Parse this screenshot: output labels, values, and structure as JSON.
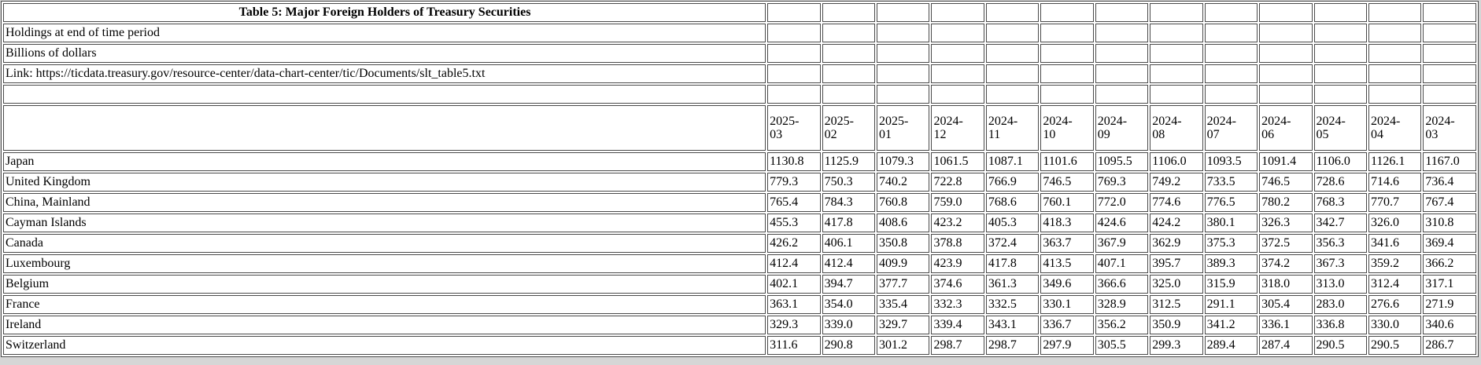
{
  "page": {
    "background_color": "#d6d6d6",
    "table_background_color": "#ffffff",
    "border_color": "#4a4a4a",
    "text_color": "#000000"
  },
  "table": {
    "title": "Table 5: Major Foreign Holders of Treasury Securities",
    "holdings_note": "Holdings at end of time period",
    "units_note": "Billions of dollars",
    "link_line": "Link: https://ticdata.treasury.gov/resource-center/data-chart-center/tic/Documents/slt_table5.txt",
    "columns": [
      "2025-03",
      "2025-02",
      "2025-01",
      "2024-12",
      "2024-11",
      "2024-10",
      "2024-09",
      "2024-08",
      "2024-07",
      "2024-06",
      "2024-05",
      "2024-04",
      "2024-03"
    ],
    "rows": [
      {
        "label": "Japan",
        "values": [
          1130.8,
          1125.9,
          1079.3,
          1061.5,
          1087.1,
          1101.6,
          1095.5,
          1106.0,
          1093.5,
          1091.4,
          1106.0,
          1126.1,
          1167.0
        ]
      },
      {
        "label": "United Kingdom",
        "values": [
          779.3,
          750.3,
          740.2,
          722.8,
          766.9,
          746.5,
          769.3,
          749.2,
          733.5,
          746.5,
          728.6,
          714.6,
          736.4
        ]
      },
      {
        "label": "China, Mainland",
        "values": [
          765.4,
          784.3,
          760.8,
          759.0,
          768.6,
          760.1,
          772.0,
          774.6,
          776.5,
          780.2,
          768.3,
          770.7,
          767.4
        ]
      },
      {
        "label": "Cayman Islands",
        "values": [
          455.3,
          417.8,
          408.6,
          423.2,
          405.3,
          418.3,
          424.6,
          424.2,
          380.1,
          326.3,
          342.7,
          326.0,
          310.8
        ]
      },
      {
        "label": "Canada",
        "values": [
          426.2,
          406.1,
          350.8,
          378.8,
          372.4,
          363.7,
          367.9,
          362.9,
          375.3,
          372.5,
          356.3,
          341.6,
          369.4
        ]
      },
      {
        "label": "Luxembourg",
        "values": [
          412.4,
          412.4,
          409.9,
          423.9,
          417.8,
          413.5,
          407.1,
          395.7,
          389.3,
          374.2,
          367.3,
          359.2,
          366.2
        ]
      },
      {
        "label": "Belgium",
        "values": [
          402.1,
          394.7,
          377.7,
          374.6,
          361.3,
          349.6,
          366.6,
          325.0,
          315.9,
          318.0,
          313.0,
          312.4,
          317.1
        ]
      },
      {
        "label": "France",
        "values": [
          363.1,
          354.0,
          335.4,
          332.3,
          332.5,
          330.1,
          328.9,
          312.5,
          291.1,
          305.4,
          283.0,
          276.6,
          271.9
        ]
      },
      {
        "label": "Ireland",
        "values": [
          329.3,
          339.0,
          329.7,
          339.4,
          343.1,
          336.7,
          356.2,
          350.9,
          341.2,
          336.1,
          336.8,
          330.0,
          340.6
        ]
      },
      {
        "label": "Switzerland",
        "values": [
          311.6,
          290.8,
          301.2,
          298.7,
          298.7,
          297.9,
          305.5,
          299.3,
          289.4,
          287.4,
          290.5,
          290.5,
          286.7
        ]
      }
    ]
  }
}
